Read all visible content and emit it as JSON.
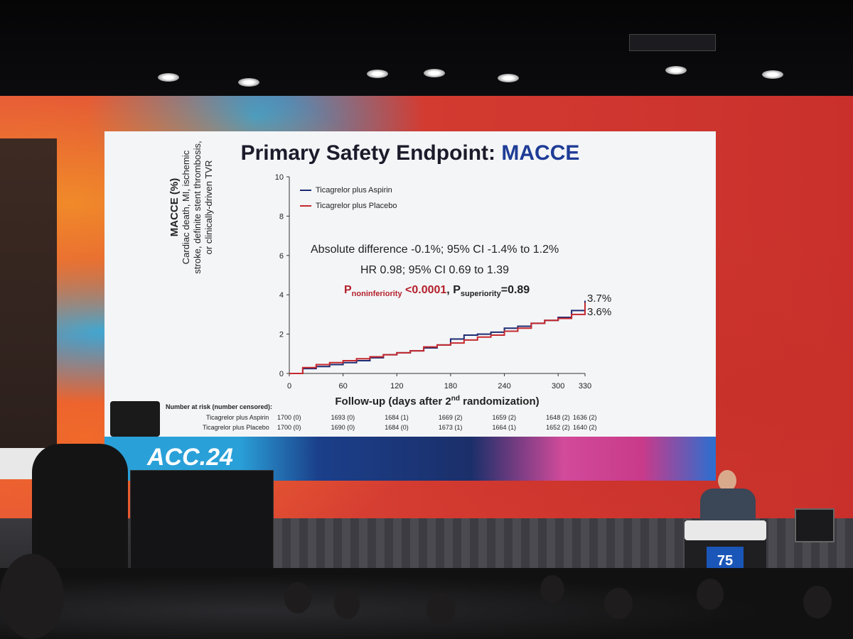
{
  "slide": {
    "title_main": "Primary Safety Endpoint: ",
    "title_accent": "MACCE",
    "ylabel_bold": "MACCE (%)",
    "ylabel_line1": "Cardiac death, MI, ischemic",
    "ylabel_line2": "stroke, definite stent thrombosis,",
    "ylabel_line3": "or clinically-driven TVR",
    "legend": [
      {
        "label": "Ticagrelor plus Aspirin",
        "color": "#1d2b72"
      },
      {
        "label": "Ticagrelor plus Placebo",
        "color": "#c42a2f"
      }
    ],
    "stat_line1": "Absolute difference -0.1%; 95% CI -1.4% to 1.2%",
    "stat_line2": "HR 0.98; 95% CI 0.69 to 1.39",
    "stat_p_letter": "P",
    "stat_p_noninf_sub": "noninferiority",
    "stat_p_noninf_val": " <0.0001",
    "stat_comma": ", ",
    "stat_p_sup_letter": "P",
    "stat_p_sup_sub": "superiority",
    "stat_p_sup_val": "=0.89",
    "end_label_aspirin": "3.7%",
    "end_label_placebo": "3.6%",
    "xlabel_pre": "Follow-up (days after 2",
    "xlabel_sup": "nd",
    "xlabel_post": " randomization)",
    "risk_title": "Number at risk (number censored):",
    "risk_rows": [
      {
        "label": "Ticagrelor plus Aspirin",
        "values": [
          "1700 (0)",
          "1693 (0)",
          "1684 (1)",
          "1669 (2)",
          "1659 (2)",
          "1648 (2)",
          "1636 (2)"
        ]
      },
      {
        "label": "Ticagrelor plus Placebo",
        "values": [
          "1700 (0)",
          "1690 (0)",
          "1684 (0)",
          "1673 (1)",
          "1664 (1)",
          "1652 (2)",
          "1640 (2)"
        ]
      }
    ]
  },
  "banner": {
    "text": "ACC.24"
  },
  "podium": {
    "logo": "75"
  },
  "chart_data": {
    "type": "line",
    "title": "Primary Safety Endpoint: MACCE",
    "xlabel": "Follow-up (days after 2nd randomization)",
    "ylabel": "MACCE (%)",
    "x_ticks": [
      0,
      60,
      120,
      180,
      240,
      300,
      330
    ],
    "y_ticks": [
      0,
      2,
      4,
      6,
      8,
      10
    ],
    "xlim": [
      0,
      330
    ],
    "ylim": [
      0,
      10
    ],
    "legend_position": "top-left",
    "series": [
      {
        "name": "Ticagrelor plus Aspirin",
        "color": "#1d2b72",
        "x": [
          0,
          15,
          30,
          45,
          60,
          75,
          90,
          105,
          120,
          135,
          150,
          165,
          180,
          195,
          210,
          225,
          240,
          255,
          270,
          285,
          300,
          315,
          330
        ],
        "y": [
          0,
          0.25,
          0.35,
          0.45,
          0.55,
          0.65,
          0.8,
          0.95,
          1.05,
          1.15,
          1.3,
          1.45,
          1.75,
          1.95,
          2.0,
          2.1,
          2.3,
          2.4,
          2.55,
          2.7,
          2.85,
          3.2,
          3.7
        ]
      },
      {
        "name": "Ticagrelor plus Placebo",
        "color": "#c42a2f",
        "x": [
          0,
          15,
          30,
          45,
          60,
          75,
          90,
          105,
          120,
          135,
          150,
          165,
          180,
          195,
          210,
          225,
          240,
          255,
          270,
          285,
          300,
          315,
          330
        ],
        "y": [
          0,
          0.3,
          0.45,
          0.55,
          0.65,
          0.75,
          0.85,
          0.95,
          1.05,
          1.15,
          1.35,
          1.45,
          1.55,
          1.7,
          1.85,
          1.95,
          2.15,
          2.3,
          2.55,
          2.7,
          2.8,
          3.0,
          3.6
        ]
      }
    ]
  }
}
